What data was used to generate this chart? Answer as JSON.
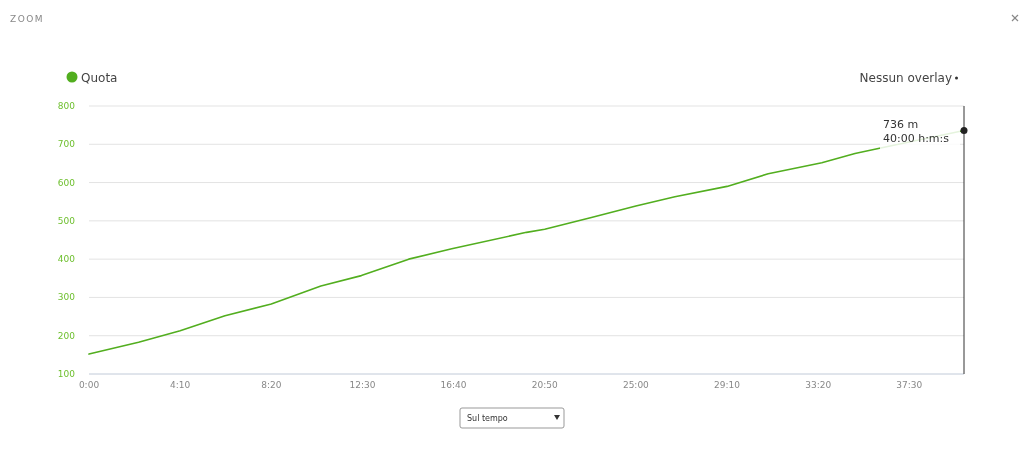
{
  "chart_data": {
    "type": "line",
    "title": "ZOOM",
    "x": [
      0,
      136,
      250,
      373,
      500,
      636,
      747,
      877,
      995,
      1200,
      1250,
      1378,
      1500,
      1607,
      1750,
      1863,
      2010,
      2101,
      2165,
      2400
    ],
    "series": [
      {
        "name": "Quota",
        "color": "#52ae1f",
        "values": [
          152,
          183,
          213,
          252,
          283,
          330,
          357,
          400,
          427,
          470,
          478,
          509,
          539,
          563,
          590,
          623,
          652,
          676,
          689,
          736
        ]
      }
    ],
    "xlim": [
      0,
      2400
    ],
    "xticks": [
      {
        "value": 0,
        "label": "0:00"
      },
      {
        "value": 250,
        "label": "4:10"
      },
      {
        "value": 500,
        "label": "8:20"
      },
      {
        "value": 750,
        "label": "12:30"
      },
      {
        "value": 1000,
        "label": "16:40"
      },
      {
        "value": 1250,
        "label": "20:50"
      },
      {
        "value": 1500,
        "label": "25:00"
      },
      {
        "value": 1750,
        "label": "29:10"
      },
      {
        "value": 2000,
        "label": "33:20"
      },
      {
        "value": 2250,
        "label": "37:30"
      }
    ],
    "ylim": [
      100,
      800
    ],
    "yticks": [
      100,
      200,
      300,
      400,
      500,
      600,
      700,
      800
    ],
    "grid": "y",
    "legend": "top left",
    "annotations": [
      {
        "text": "736 m\n40:00 h:m:s",
        "x": 2400,
        "y": 736
      },
      "Nessun overlay",
      "Sul tempo"
    ]
  }
}
